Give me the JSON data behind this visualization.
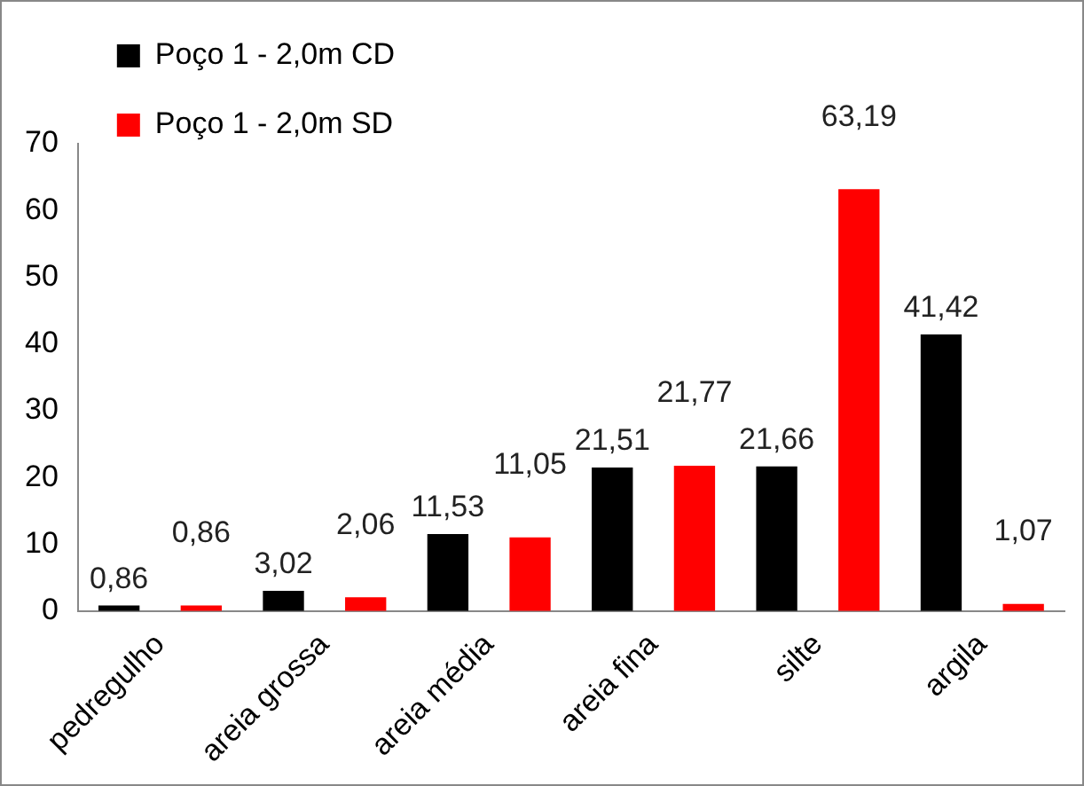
{
  "chart_data": {
    "type": "bar",
    "categories": [
      "pedregulho",
      "areia grossa",
      "areia média",
      "areia fina",
      "silte",
      "argila"
    ],
    "series": [
      {
        "name": "Poço 1 - 2,0m CD",
        "color": "#000000",
        "values": [
          0.86,
          3.02,
          11.53,
          21.51,
          21.66,
          41.42
        ],
        "value_labels": [
          "0,86",
          "3,02",
          "11,53",
          "21,51",
          "21,66",
          "41,42"
        ]
      },
      {
        "name": "Poço 1 - 2,0m SD",
        "color": "#ff0000",
        "values": [
          0.86,
          2.06,
          11.05,
          21.77,
          63.19,
          1.07
        ],
        "value_labels": [
          "0,86",
          "2,06",
          "11,05",
          "21,77",
          "63,19",
          "1,07"
        ]
      }
    ],
    "ylim": [
      0,
      70
    ],
    "yticks": [
      0,
      10,
      20,
      30,
      40,
      50,
      60,
      70
    ],
    "grid": false,
    "legend": "top left"
  }
}
